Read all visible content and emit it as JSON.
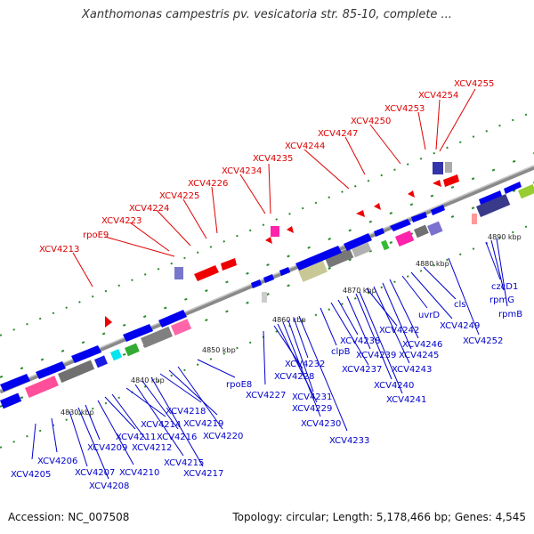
{
  "title": "Xanthomonas campestris pv. vesicatoria str. 85-10, complete ...",
  "footer": {
    "accession": "Accession: NC_007508",
    "topology": "Topology: circular; Length: 5,178,466 bp; Genes: 4,545"
  },
  "colors": {
    "top_label": "#dd0000",
    "bottom_label": "#0000cc",
    "backbone": "#8a8a8a",
    "tick": "#2a8a2a"
  },
  "kbp_ticks": [
    "4830 kbp",
    "4840 kbp",
    "4850 kbp",
    "4860 kbp",
    "4870 kbp",
    "4880 kbp",
    "4890 kbp"
  ],
  "top_labels": [
    "XCV4213",
    "rpoE9",
    "XCV4223",
    "XCV4224",
    "XCV4225",
    "XCV4226",
    "XCV4234",
    "XCV4235",
    "XCV4244",
    "XCV4247",
    "XCV4250",
    "XCV4253",
    "XCV4254",
    "XCV4255"
  ],
  "bottom_labels": [
    "XCV4205",
    "XCV4206",
    "XCV4207",
    "XCV4208",
    "XCV4209",
    "XCV4210",
    "XCV4211",
    "XCV4212",
    "XCV4214",
    "XCV4215",
    "XCV4216",
    "XCV4217",
    "XCV4218",
    "XCV4219",
    "XCV4220",
    "rpoE8",
    "XCV4227",
    "XCV4228",
    "XCV4229",
    "XCV4230",
    "XCV4231",
    "XCV4232",
    "XCV4233",
    "clpB",
    "XCV4237",
    "XCV4238",
    "XCV4239",
    "XCV4240",
    "XCV4241",
    "XCV4242",
    "XCV4243",
    "XCV4245",
    "XCV4246",
    "uvrD",
    "XCV4249",
    "cls",
    "XCV4252",
    "czcD1",
    "rpmG",
    "rpmB"
  ]
}
